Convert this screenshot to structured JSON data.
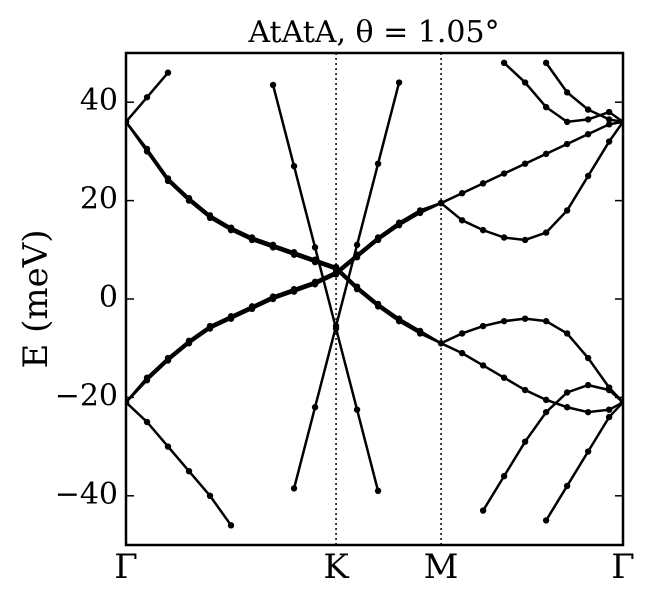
{
  "chart_data": {
    "type": "line",
    "title": "AtAtA, θ = 1.05°",
    "ylabel": "E (meV)",
    "x": [
      0,
      0.1,
      0.2,
      0.3,
      0.4,
      0.5,
      0.6,
      0.7,
      0.8,
      0.9,
      1.0,
      1.1,
      1.2,
      1.3,
      1.4,
      1.5,
      1.6,
      1.7,
      1.8,
      1.9,
      2.0,
      2.1,
      2.2,
      2.3,
      2.366
    ],
    "xlim": [
      0,
      2.366
    ],
    "xticks": [
      {
        "value": 0,
        "label": "Γ"
      },
      {
        "value": 1,
        "label": "K"
      },
      {
        "value": 1.5,
        "label": "M"
      },
      {
        "value": 2.366,
        "label": "Γ"
      }
    ],
    "ylim": [
      -50,
      50
    ],
    "yticks": [
      {
        "value": -40,
        "label": "−40"
      },
      {
        "value": -20,
        "label": "−20"
      },
      0,
      20,
      40
    ],
    "grid": true,
    "color": "#000000",
    "markers": true,
    "series": [
      {
        "values": [
          36,
          30,
          24,
          20,
          16.5,
          14,
          12,
          10.5,
          9,
          7.5,
          6,
          2,
          -1.5,
          -4.5,
          -7,
          -9,
          -7,
          -5.5,
          -4.5,
          -4,
          -4.5,
          -7,
          -12,
          -18,
          -21
        ]
      },
      {
        "values": [
          36,
          30.5,
          24.5,
          20.5,
          17,
          14.5,
          12.5,
          11,
          9.5,
          8,
          6.5,
          2.5,
          -1,
          -4,
          -6.5,
          -9,
          -11,
          -13.5,
          -16,
          -18.5,
          -20.5,
          -22,
          -23,
          -22.5,
          -21
        ]
      },
      {
        "values": [
          -21,
          -16,
          -12,
          -8.5,
          -5.5,
          -3.5,
          -1.5,
          0.5,
          2,
          3.5,
          5.5,
          9,
          12.5,
          15.5,
          18,
          19.5,
          21.5,
          23.5,
          25.5,
          27.5,
          29.5,
          31.5,
          33.5,
          35.5,
          36
        ]
      },
      {
        "values": [
          -21,
          -16.5,
          -12.5,
          -9,
          -6,
          -4,
          -2,
          0,
          1.5,
          3,
          5,
          8.5,
          12,
          15,
          17.5,
          19.5,
          16,
          14,
          12.5,
          12,
          13.5,
          18,
          25,
          32,
          36
        ]
      },
      {
        "values": [
          36,
          41,
          46,
          null,
          null,
          null,
          null,
          null,
          null,
          null,
          null,
          null,
          null,
          null,
          null,
          null,
          null,
          null,
          null,
          null,
          null,
          null,
          null,
          null,
          null
        ]
      },
      {
        "values": [
          -21,
          -25,
          -30,
          -35,
          -40,
          -46,
          null,
          null,
          null,
          null,
          null,
          null,
          null,
          null,
          null,
          null,
          null,
          null,
          null,
          null,
          null,
          null,
          null,
          null,
          null
        ]
      },
      {
        "values": [
          null,
          null,
          null,
          null,
          null,
          null,
          null,
          43.5,
          27,
          10.5,
          -6,
          -22.5,
          -39,
          null,
          null,
          null,
          null,
          null,
          null,
          null,
          null,
          null,
          null,
          null,
          null
        ]
      },
      {
        "values": [
          null,
          null,
          null,
          null,
          null,
          null,
          null,
          null,
          -38.5,
          -22,
          -5.5,
          11,
          27.5,
          44,
          null,
          null,
          null,
          null,
          null,
          null,
          null,
          null,
          null,
          null,
          null
        ]
      },
      {
        "values": [
          null,
          null,
          null,
          null,
          null,
          null,
          null,
          null,
          null,
          null,
          null,
          null,
          null,
          null,
          null,
          null,
          null,
          null,
          48,
          44,
          39,
          36,
          36.5,
          38,
          36
        ]
      },
      {
        "values": [
          null,
          null,
          null,
          null,
          null,
          null,
          null,
          null,
          null,
          null,
          null,
          null,
          null,
          null,
          null,
          null,
          null,
          null,
          null,
          null,
          48,
          42,
          38.5,
          36.5,
          36
        ]
      },
      {
        "values": [
          null,
          null,
          null,
          null,
          null,
          null,
          null,
          null,
          null,
          null,
          null,
          null,
          null,
          null,
          null,
          null,
          null,
          -43,
          -36,
          -29,
          -23,
          -19,
          -17.5,
          -18.5,
          -21
        ]
      },
      {
        "values": [
          null,
          null,
          null,
          null,
          null,
          null,
          null,
          null,
          null,
          null,
          null,
          null,
          null,
          null,
          null,
          null,
          null,
          null,
          null,
          null,
          -45,
          -38,
          -31,
          -24,
          -21
        ]
      }
    ]
  }
}
